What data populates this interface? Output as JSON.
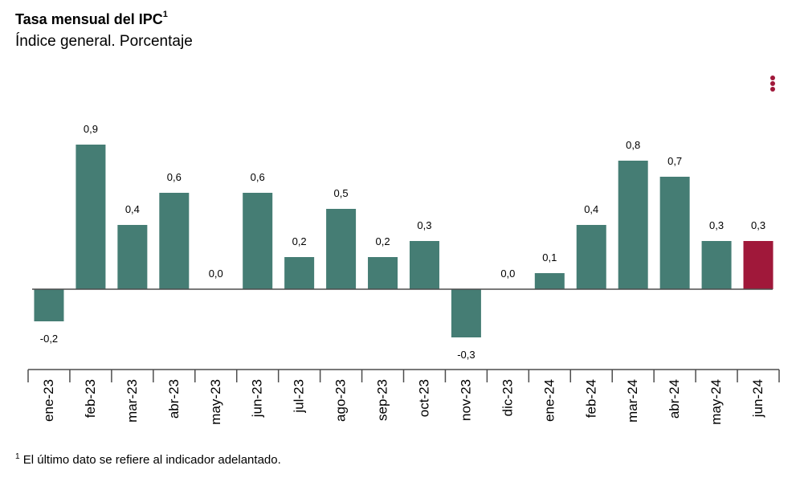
{
  "header": {
    "title": "Tasa mensual del IPC",
    "title_sup": "1",
    "subtitle": "Índice general. Porcentaje"
  },
  "menu": {
    "icon": "more-vertical-icon",
    "color": "#a0183a"
  },
  "footnote": {
    "sup": "1",
    "text": "El último dato se refiere al indicador adelantado."
  },
  "chart_data": {
    "type": "bar",
    "categories": [
      "ene-23",
      "feb-23",
      "mar-23",
      "abr-23",
      "may-23",
      "jun-23",
      "jul-23",
      "ago-23",
      "sep-23",
      "oct-23",
      "nov-23",
      "dic-23",
      "ene-24",
      "feb-24",
      "mar-24",
      "abr-24",
      "may-24",
      "jun-24"
    ],
    "values": [
      -0.2,
      0.9,
      0.4,
      0.6,
      0.0,
      0.6,
      0.2,
      0.5,
      0.2,
      0.3,
      -0.3,
      0.0,
      0.1,
      0.4,
      0.8,
      0.7,
      0.3,
      0.3
    ],
    "labels": [
      "-0,2",
      "0,9",
      "0,4",
      "0,6",
      "0,0",
      "0,6",
      "0,2",
      "0,5",
      "0,2",
      "0,3",
      "-0,3",
      "0,0",
      "0,1",
      "0,4",
      "0,8",
      "0,7",
      "0,3",
      "0,3"
    ],
    "colors": {
      "default": "#457d74",
      "highlight": "#a0183a"
    },
    "highlight_index": 17,
    "grid": false,
    "legend": "none"
  }
}
